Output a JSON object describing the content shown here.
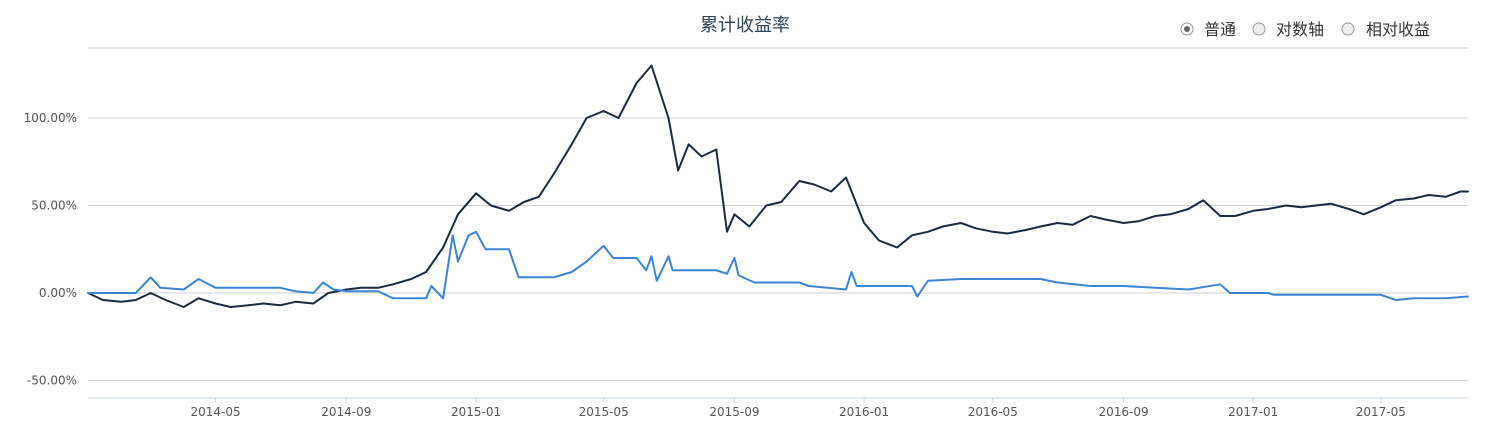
{
  "chart_data": {
    "type": "line",
    "title": "累计收益率",
    "legend_position": "top-right",
    "grid": true,
    "y_axis": {
      "min": -60,
      "max": 140,
      "unit": "%",
      "ticks": [
        -50,
        0,
        50,
        100
      ],
      "tick_labels": [
        "-50.00%",
        "0.00%",
        "50.00%",
        "100.00%"
      ]
    },
    "x_axis": {
      "min": "2014-01-01",
      "max": "2017-07-22",
      "ticks": [
        "2014-05-01",
        "2014-09-01",
        "2015-01-01",
        "2015-05-01",
        "2015-09-01",
        "2016-01-01",
        "2016-05-01",
        "2016-09-01",
        "2017-01-01",
        "2017-05-01"
      ],
      "tick_labels": [
        "2014-05",
        "2014-09",
        "2015-01",
        "2015-05",
        "2015-09",
        "2016-01",
        "2016-05",
        "2016-09",
        "2017-01",
        "2017-05"
      ]
    },
    "series": [
      {
        "color": "#1b2a41",
        "points": [
          [
            "2014-01-01",
            0
          ],
          [
            "2014-01-15",
            -4
          ],
          [
            "2014-02-01",
            -5
          ],
          [
            "2014-02-15",
            -4
          ],
          [
            "2014-03-01",
            0
          ],
          [
            "2014-03-15",
            -4
          ],
          [
            "2014-04-01",
            -8
          ],
          [
            "2014-04-15",
            -3
          ],
          [
            "2014-05-01",
            -6
          ],
          [
            "2014-05-15",
            -8
          ],
          [
            "2014-06-01",
            -7
          ],
          [
            "2014-06-15",
            -6
          ],
          [
            "2014-07-01",
            -7
          ],
          [
            "2014-07-15",
            -5
          ],
          [
            "2014-08-01",
            -6
          ],
          [
            "2014-08-15",
            0
          ],
          [
            "2014-09-01",
            2
          ],
          [
            "2014-09-15",
            3
          ],
          [
            "2014-10-01",
            3
          ],
          [
            "2014-10-15",
            5
          ],
          [
            "2014-11-01",
            8
          ],
          [
            "2014-11-15",
            12
          ],
          [
            "2014-12-01",
            26
          ],
          [
            "2014-12-15",
            45
          ],
          [
            "2015-01-01",
            57
          ],
          [
            "2015-01-15",
            50
          ],
          [
            "2015-02-01",
            47
          ],
          [
            "2015-02-15",
            52
          ],
          [
            "2015-03-01",
            55
          ],
          [
            "2015-03-15",
            68
          ],
          [
            "2015-04-01",
            85
          ],
          [
            "2015-04-15",
            100
          ],
          [
            "2015-05-01",
            104
          ],
          [
            "2015-05-15",
            100
          ],
          [
            "2015-06-01",
            120
          ],
          [
            "2015-06-15",
            130
          ],
          [
            "2015-07-01",
            100
          ],
          [
            "2015-07-10",
            70
          ],
          [
            "2015-07-20",
            85
          ],
          [
            "2015-08-01",
            78
          ],
          [
            "2015-08-15",
            82
          ],
          [
            "2015-08-25",
            35
          ],
          [
            "2015-09-01",
            45
          ],
          [
            "2015-09-15",
            38
          ],
          [
            "2015-10-01",
            50
          ],
          [
            "2015-10-15",
            52
          ],
          [
            "2015-11-01",
            64
          ],
          [
            "2015-11-15",
            62
          ],
          [
            "2015-12-01",
            58
          ],
          [
            "2015-12-15",
            66
          ],
          [
            "2016-01-01",
            40
          ],
          [
            "2016-01-15",
            30
          ],
          [
            "2016-02-01",
            26
          ],
          [
            "2016-02-15",
            33
          ],
          [
            "2016-03-01",
            35
          ],
          [
            "2016-03-15",
            38
          ],
          [
            "2016-04-01",
            40
          ],
          [
            "2016-04-15",
            37
          ],
          [
            "2016-05-01",
            35
          ],
          [
            "2016-05-15",
            34
          ],
          [
            "2016-06-01",
            36
          ],
          [
            "2016-06-15",
            38
          ],
          [
            "2016-07-01",
            40
          ],
          [
            "2016-07-15",
            39
          ],
          [
            "2016-08-01",
            44
          ],
          [
            "2016-08-15",
            42
          ],
          [
            "2016-09-01",
            40
          ],
          [
            "2016-09-15",
            41
          ],
          [
            "2016-10-01",
            44
          ],
          [
            "2016-10-15",
            45
          ],
          [
            "2016-11-01",
            48
          ],
          [
            "2016-11-15",
            53
          ],
          [
            "2016-12-01",
            44
          ],
          [
            "2016-12-15",
            44
          ],
          [
            "2017-01-01",
            47
          ],
          [
            "2017-01-15",
            48
          ],
          [
            "2017-02-01",
            50
          ],
          [
            "2017-02-15",
            49
          ],
          [
            "2017-03-01",
            50
          ],
          [
            "2017-03-15",
            51
          ],
          [
            "2017-04-01",
            48
          ],
          [
            "2017-04-15",
            45
          ],
          [
            "2017-05-01",
            49
          ],
          [
            "2017-05-15",
            53
          ],
          [
            "2017-06-01",
            54
          ],
          [
            "2017-06-15",
            56
          ],
          [
            "2017-07-01",
            55
          ],
          [
            "2017-07-15",
            58
          ],
          [
            "2017-07-22",
            58
          ]
        ]
      },
      {
        "color": "#3a86d4",
        "points": [
          [
            "2014-01-01",
            0
          ],
          [
            "2014-02-15",
            0
          ],
          [
            "2014-03-01",
            9
          ],
          [
            "2014-03-10",
            3
          ],
          [
            "2014-04-01",
            2
          ],
          [
            "2014-04-15",
            8
          ],
          [
            "2014-05-01",
            3
          ],
          [
            "2014-07-01",
            3
          ],
          [
            "2014-07-15",
            1
          ],
          [
            "2014-08-01",
            0
          ],
          [
            "2014-08-10",
            6
          ],
          [
            "2014-08-20",
            2
          ],
          [
            "2014-09-01",
            1
          ],
          [
            "2014-10-01",
            1
          ],
          [
            "2014-10-15",
            -3
          ],
          [
            "2014-11-15",
            -3
          ],
          [
            "2014-11-20",
            4
          ],
          [
            "2014-12-01",
            -3
          ],
          [
            "2014-12-10",
            33
          ],
          [
            "2014-12-15",
            18
          ],
          [
            "2014-12-25",
            33
          ],
          [
            "2015-01-01",
            35
          ],
          [
            "2015-01-10",
            25
          ],
          [
            "2015-02-01",
            25
          ],
          [
            "2015-02-10",
            9
          ],
          [
            "2015-03-15",
            9
          ],
          [
            "2015-04-01",
            12
          ],
          [
            "2015-04-15",
            18
          ],
          [
            "2015-05-01",
            27
          ],
          [
            "2015-05-10",
            20
          ],
          [
            "2015-06-01",
            20
          ],
          [
            "2015-06-10",
            13
          ],
          [
            "2015-06-15",
            21
          ],
          [
            "2015-06-20",
            7
          ],
          [
            "2015-07-01",
            21
          ],
          [
            "2015-07-05",
            13
          ],
          [
            "2015-08-15",
            13
          ],
          [
            "2015-08-25",
            11
          ],
          [
            "2015-09-01",
            20
          ],
          [
            "2015-09-05",
            10
          ],
          [
            "2015-09-20",
            6
          ],
          [
            "2015-11-01",
            6
          ],
          [
            "2015-11-10",
            4
          ],
          [
            "2015-12-15",
            2
          ],
          [
            "2015-12-20",
            12
          ],
          [
            "2015-12-25",
            4
          ],
          [
            "2016-02-15",
            4
          ],
          [
            "2016-02-20",
            -2
          ],
          [
            "2016-03-01",
            7
          ],
          [
            "2016-04-01",
            8
          ],
          [
            "2016-05-01",
            8
          ],
          [
            "2016-06-15",
            8
          ],
          [
            "2016-07-01",
            6
          ],
          [
            "2016-08-01",
            4
          ],
          [
            "2016-09-01",
            4
          ],
          [
            "2016-10-01",
            3
          ],
          [
            "2016-11-01",
            2
          ],
          [
            "2016-12-01",
            5
          ],
          [
            "2016-12-10",
            0
          ],
          [
            "2017-01-15",
            0
          ],
          [
            "2017-01-20",
            -1
          ],
          [
            "2017-05-01",
            -1
          ],
          [
            "2017-05-15",
            -4
          ],
          [
            "2017-06-01",
            -3
          ],
          [
            "2017-07-01",
            -3
          ],
          [
            "2017-07-22",
            -2
          ]
        ]
      }
    ]
  },
  "controls": {
    "mode_options": [
      {
        "label": "普通",
        "selected": true
      },
      {
        "label": "对数轴",
        "selected": false
      },
      {
        "label": "相对收益",
        "selected": false
      }
    ]
  }
}
